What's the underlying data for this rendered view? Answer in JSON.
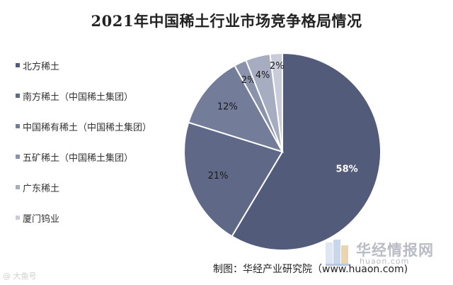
{
  "chart_data": {
    "type": "pie",
    "title": "2021年中国稀土行业市场竞争格局情况",
    "slices": [
      {
        "label": "北方稀土",
        "value": 58,
        "display": "58%",
        "color": "#535b7a",
        "label_color": "#ffffff"
      },
      {
        "label": "南方稀土（中国稀土集团）",
        "value": 21,
        "display": "21%",
        "color": "#5f6987",
        "label_color": "#1a1a1a"
      },
      {
        "label": "中国稀有稀土（中国稀土集团）",
        "value": 12,
        "display": "12%",
        "color": "#737c98",
        "label_color": "#1a1a1a"
      },
      {
        "label": "五矿稀土（中国稀土集团）",
        "value": 2,
        "display": "2%",
        "color": "#8a93ab",
        "label_color": "#1a1a1a"
      },
      {
        "label": "广东稀土",
        "value": 4,
        "display": "4%",
        "color": "#a6adc0",
        "label_color": "#1a1a1a"
      },
      {
        "label": "厦门钨业",
        "value": 2,
        "display": "2%",
        "color": "#c9cdd9",
        "label_color": "#1a1a1a"
      }
    ],
    "legend_placement": "left",
    "start_angle": "12 o'clock, clockwise"
  },
  "footer": {
    "credit": "制图：华经产业研究院（www.huaon.com)",
    "brand_name": "华经情报网",
    "brand_url": "huaon.com"
  },
  "watermark": "@ 大鱼号"
}
